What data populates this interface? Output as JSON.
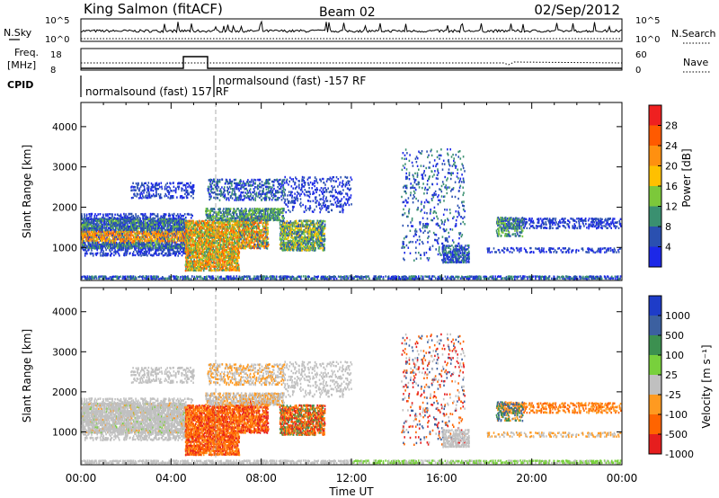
{
  "header": {
    "title": "King Salmon (fitACF)",
    "beam": "Beam 02",
    "date": "02/Sep/2012"
  },
  "nsky_panel": {
    "left_label": "N.Sky",
    "left_ticks": [
      "10^5",
      "10^0"
    ],
    "right_ticks": [
      "10^5",
      "10^0"
    ],
    "right_label": "N.Search"
  },
  "freq_panel": {
    "left_label_1": "Freq.",
    "left_label_2": "[MHz]",
    "left_ticks": [
      "18",
      "8"
    ],
    "right_ticks": [
      "60",
      "0"
    ],
    "right_label": "Nave"
  },
  "cpid": {
    "label": "CPID",
    "segments": [
      {
        "label": "normalsound (fast) 157 RF",
        "start_hour": 0
      },
      {
        "label": "normalsound (fast) -157 RF",
        "start_hour": 5.9
      }
    ]
  },
  "chart_data": [
    {
      "type": "heatmap",
      "quantity": "Power",
      "ylabel": "Slant Range [km]",
      "ylim": [
        180,
        4600
      ],
      "yticks": [
        1000,
        2000,
        3000,
        4000
      ],
      "xlim_hours": [
        0,
        24
      ],
      "colorbar": {
        "label": "Power [dB]",
        "ticks": [
          "28",
          "24",
          "20",
          "16",
          "12",
          "8",
          "4"
        ],
        "colors": [
          "#ef2020",
          "#ff5a00",
          "#ff9010",
          "#ffc000",
          "#7cc83a",
          "#3a9070",
          "#2a50b0",
          "#1c28e8"
        ]
      }
    },
    {
      "type": "heatmap",
      "quantity": "Velocity",
      "ylabel": "Slant Range [km]",
      "ylim": [
        180,
        4600
      ],
      "yticks": [
        1000,
        2000,
        3000,
        4000
      ],
      "xlim_hours": [
        0,
        24
      ],
      "colorbar": {
        "label": "Velocity [m s⁻¹]",
        "ticks": [
          "1000",
          "500",
          "100",
          "25",
          "-25",
          "-100",
          "-500",
          "-1000"
        ],
        "colors": [
          "#1e3cc8",
          "#3c60a0",
          "#3c9050",
          "#78d03c",
          "#c0c0c0",
          "#ff9a20",
          "#ff6400",
          "#e61e1e"
        ]
      }
    }
  ],
  "x_axis": {
    "label": "Time UT",
    "ticks": [
      "00:00",
      "04:00",
      "08:00",
      "12:00",
      "16:00",
      "20:00",
      "00:00"
    ]
  }
}
